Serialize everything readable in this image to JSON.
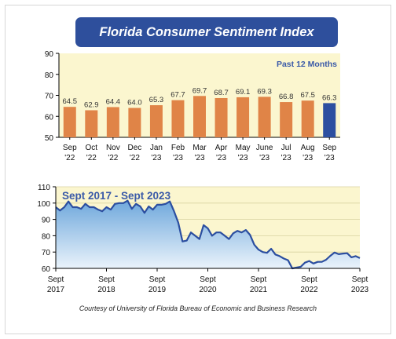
{
  "title": "Florida Consumer Sentiment Index",
  "credit": "Courtesy of University of Florida Bureau of Economic and Business Research",
  "colors": {
    "title_bg": "#2e4f9c",
    "panel_bg": "#fbf6cf",
    "bar": "#e08447",
    "bar_highlight": "#2c4fa0",
    "area_fill_top": "#6fa8dc",
    "area_fill_bottom": "#eaf3fb",
    "line": "#2b4ea0",
    "subtitle": "#3a5aa8"
  },
  "chart_data": [
    {
      "type": "bar",
      "subtitle": "Past 12 Months",
      "categories": [
        [
          "Sep",
          "'22"
        ],
        [
          "Oct",
          "'22"
        ],
        [
          "Nov",
          "'22"
        ],
        [
          "Dec",
          "'22"
        ],
        [
          "Jan",
          "'23"
        ],
        [
          "Feb",
          "'23"
        ],
        [
          "Mar",
          "'23"
        ],
        [
          "Apr",
          "'23"
        ],
        [
          "May",
          "'23"
        ],
        [
          "June",
          "'23"
        ],
        [
          "Jul",
          "'23"
        ],
        [
          "Aug",
          "'23"
        ],
        [
          "Sep",
          "'23"
        ]
      ],
      "values": [
        64.5,
        62.9,
        64.4,
        64.0,
        65.3,
        67.7,
        69.7,
        68.7,
        69.1,
        69.3,
        66.8,
        67.5,
        66.3
      ],
      "value_labels": [
        "64.5",
        "62.9",
        "64.4",
        "64.0",
        "65.3",
        "67.7",
        "69.7",
        "68.7",
        "69.1",
        "69.3",
        "66.8",
        "67.5",
        "66.3"
      ],
      "highlight_index": 12,
      "ylim": [
        50,
        90
      ],
      "yticks": [
        50,
        60,
        70,
        80,
        90
      ],
      "grid": false
    },
    {
      "type": "area",
      "subtitle": "Sept 2017 - Sept 2023",
      "ylim": [
        60,
        110
      ],
      "yticks": [
        60,
        70,
        80,
        90,
        100,
        110
      ],
      "xlim": [
        "2017-09",
        "2023-09"
      ],
      "xticks": [
        [
          "Sept",
          "2017"
        ],
        [
          "Sept",
          "2018"
        ],
        [
          "Sept",
          "2019"
        ],
        [
          "Sept",
          "2020"
        ],
        [
          "Sept",
          "2021"
        ],
        [
          "Sept",
          "2022"
        ],
        [
          "Sept",
          "2023"
        ]
      ],
      "grid": true,
      "x": [
        "2017-09",
        "2017-10",
        "2017-11",
        "2017-12",
        "2018-01",
        "2018-02",
        "2018-03",
        "2018-04",
        "2018-05",
        "2018-06",
        "2018-07",
        "2018-08",
        "2018-09",
        "2018-10",
        "2018-11",
        "2018-12",
        "2019-01",
        "2019-02",
        "2019-03",
        "2019-04",
        "2019-05",
        "2019-06",
        "2019-07",
        "2019-08",
        "2019-09",
        "2019-10",
        "2019-11",
        "2019-12",
        "2020-01",
        "2020-02",
        "2020-03",
        "2020-04",
        "2020-05",
        "2020-06",
        "2020-07",
        "2020-08",
        "2020-09",
        "2020-10",
        "2020-11",
        "2020-12",
        "2021-01",
        "2021-02",
        "2021-03",
        "2021-04",
        "2021-05",
        "2021-06",
        "2021-07",
        "2021-08",
        "2021-09",
        "2021-10",
        "2021-11",
        "2021-12",
        "2022-01",
        "2022-02",
        "2022-03",
        "2022-04",
        "2022-05",
        "2022-06",
        "2022-07",
        "2022-08",
        "2022-09",
        "2022-10",
        "2022-11",
        "2022-12",
        "2023-01",
        "2023-02",
        "2023-03",
        "2023-04",
        "2023-05",
        "2023-06",
        "2023-07",
        "2023-08",
        "2023-09"
      ],
      "y": [
        97.5,
        95.5,
        97.5,
        101.0,
        97.5,
        97.5,
        96.5,
        99.5,
        97.5,
        97.5,
        96.0,
        95.0,
        97.5,
        96.0,
        99.5,
        100.0,
        100.0,
        101.5,
        96.5,
        99.5,
        98.0,
        94.0,
        98.0,
        96.0,
        99.0,
        99.0,
        99.5,
        101.0,
        95.0,
        88.0,
        76.5,
        77.0,
        82.0,
        80.0,
        78.0,
        86.5,
        84.5,
        80.0,
        82.0,
        82.0,
        80.0,
        78.0,
        81.5,
        83.0,
        82.0,
        83.5,
        80.5,
        74.5,
        71.5,
        70.0,
        69.5,
        72.0,
        68.5,
        67.5,
        66.0,
        65.0,
        60.0,
        60.5,
        61.0,
        63.5,
        64.5,
        63.0,
        64.0,
        64.0,
        65.3,
        67.7,
        69.7,
        68.7,
        69.1,
        69.3,
        66.8,
        67.5,
        66.3
      ]
    }
  ]
}
